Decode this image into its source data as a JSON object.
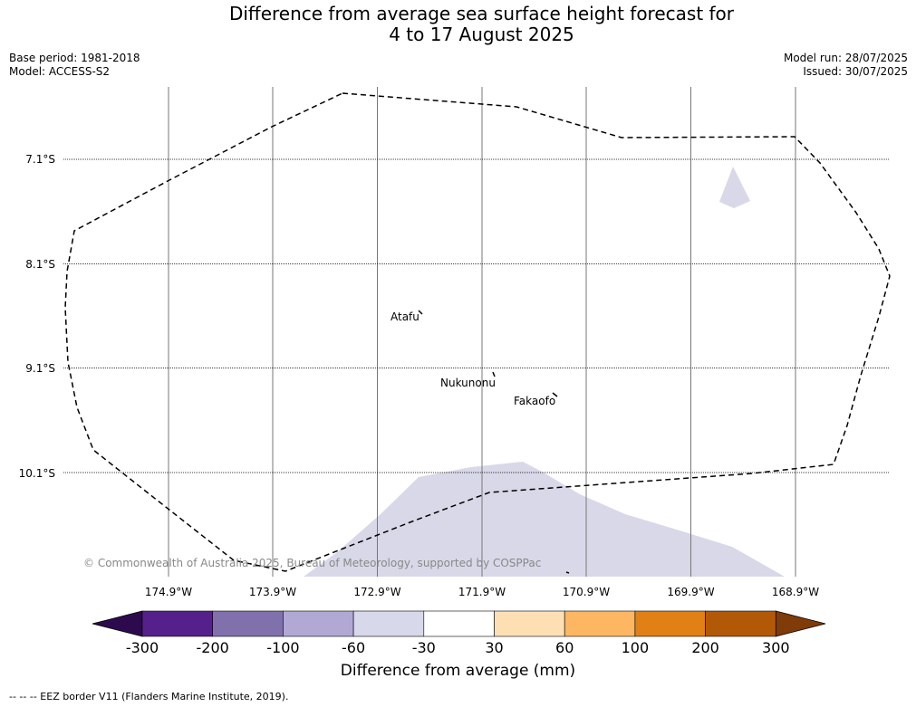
{
  "title_line1": "Difference from average sea surface height forecast for",
  "title_line2": "4 to 17 August 2025",
  "meta": {
    "base_period": "Base period: 1981-2018",
    "model": "Model: ACCESS-S2",
    "model_run": "Model run: 28/07/2025",
    "issued": "Issued: 30/07/2025"
  },
  "map": {
    "lat_labels": [
      "7.1°S",
      "8.1°S",
      "9.1°S",
      "10.1°S"
    ],
    "lon_labels": [
      "174.9°W",
      "173.9°W",
      "172.9°W",
      "171.9°W",
      "170.9°W",
      "169.9°W",
      "168.9°W"
    ],
    "places": [
      "Atafu",
      "Nukunonu",
      "Fakaofo"
    ],
    "copyright": "© Commonwealth of Australia 2025, Bureau of Meteorology, supported by COSPPac",
    "anomaly_fill_color": "#d8d8e8",
    "eez_line_color": "#000000"
  },
  "colorbar": {
    "label": "Difference from average (mm)",
    "ticks": [
      "-300",
      "-200",
      "-100",
      "-60",
      "-30",
      "30",
      "60",
      "100",
      "200",
      "300"
    ],
    "colors": [
      "#2d0a4e",
      "#55208b",
      "#8071ad",
      "#b1a9d4",
      "#d8d8eb",
      "#ffffff",
      "#fedfb3",
      "#fdb762",
      "#e08015",
      "#b25908",
      "#7f3b08"
    ]
  },
  "footnote": "--  --  -- EEZ border V11 (Flanders Marine Institute, 2019)."
}
